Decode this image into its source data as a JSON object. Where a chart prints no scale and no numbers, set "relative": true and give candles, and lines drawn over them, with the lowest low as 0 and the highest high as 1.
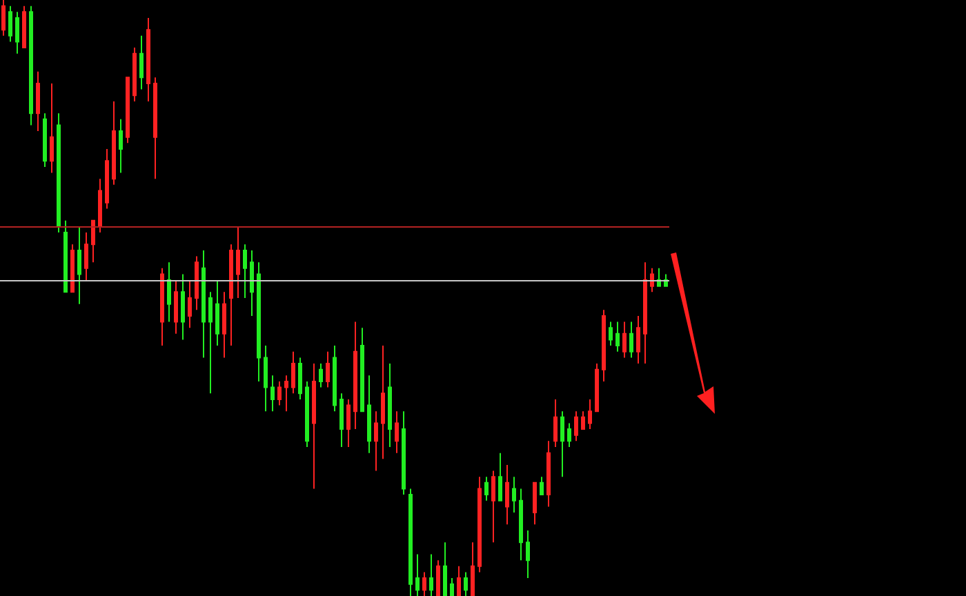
{
  "chart_data": {
    "type": "candlestick",
    "relative": true,
    "colors": [
      "#ff2222",
      "#22ee22",
      "#22ee22",
      "#ff2222",
      "#22ee22",
      "#ff2222",
      "#22ee22",
      "#ff2222",
      "#22ee22",
      "#22ee22",
      "#ff2222",
      "#22ee22",
      "#ff2222",
      "#ff2222",
      "#ff2222",
      "#ff2222",
      "#ff2222",
      "#22ee22",
      "#ff2222",
      "#ff2222",
      "#22ee22",
      "#ff2222",
      "#ff2222",
      "#ff2222",
      "#22ee22",
      "#ff2222",
      "#22ee22",
      "#ff2222",
      "#ff2222",
      "#22ee22",
      "#22ee22",
      "#22ee22",
      "#ff2222",
      "#ff2222",
      "#ff2222",
      "#22ee22",
      "#22ee22",
      "#22ee22",
      "#22ee22",
      "#22ee22",
      "#ff2222",
      "#ff2222",
      "#ff2222",
      "#22ee22",
      "#22ee22",
      "#ff2222",
      "#22ee22",
      "#ff2222",
      "#22ee22",
      "#22ee22",
      "#ff2222",
      "#ff2222",
      "#22ee22",
      "#22ee22",
      "#ff2222",
      "#ff2222",
      "#22ee22",
      "#ff2222",
      "#22ee22",
      "#22ee22",
      "#22ee22",
      "#ff2222",
      "#22ee22",
      "#ff2222",
      "#22ee22",
      "#22ee22",
      "#ff2222",
      "#22ee22",
      "#ff2222",
      "#ff2222",
      "#22ee22",
      "#ff2222",
      "#22ee22",
      "#ff2222",
      "#22ee22",
      "#22ee22",
      "#22ee22",
      "#ff2222",
      "#22ee22",
      "#ff2222",
      "#ff2222",
      "#22ee22",
      "#22ee22",
      "#ff2222",
      "#ff2222",
      "#ff2222",
      "#ff2222",
      "#ff2222",
      "#22ee22",
      "#22ee22",
      "#ff2222",
      "#22ee22",
      "#ff2222",
      "#ff2222",
      "#ff2222",
      "#22ee22",
      "#22ee22"
    ],
    "categories": [
      null,
      null,
      null,
      null,
      null,
      null,
      null,
      null,
      null,
      null,
      null,
      null,
      null,
      null,
      null,
      null,
      null,
      null,
      null,
      null,
      null,
      null,
      null,
      null,
      null,
      null,
      null,
      null,
      null,
      null,
      null,
      null,
      null,
      null,
      null,
      null,
      null,
      null,
      null,
      null,
      null,
      null,
      null,
      null,
      null,
      null,
      null,
      null,
      null,
      null,
      null,
      null,
      null,
      null,
      null,
      null,
      null,
      null,
      null,
      null,
      null,
      null,
      null,
      null,
      null,
      null,
      null,
      null,
      null,
      null,
      null,
      null,
      null,
      null,
      null,
      null,
      null,
      null,
      null,
      null,
      null,
      null,
      null,
      null,
      null,
      null,
      null,
      null,
      null,
      null,
      null,
      null,
      null,
      null,
      null,
      null,
      null
    ],
    "ohlc": [
      [
        0.95,
        1,
        0.94,
        0.99
      ],
      [
        0.98,
        0.99,
        0.93,
        0.94
      ],
      [
        0.97,
        0.98,
        0.91,
        0.93
      ],
      [
        0.92,
        0.99,
        0.92,
        0.98
      ],
      [
        0.98,
        0.99,
        0.79,
        0.81
      ],
      [
        0.81,
        0.88,
        0.78,
        0.86
      ],
      [
        0.8,
        0.81,
        0.72,
        0.73
      ],
      [
        0.73,
        0.86,
        0.71,
        0.77
      ],
      [
        0.79,
        0.81,
        0.61,
        0.62
      ],
      [
        0.61,
        0.63,
        0.51,
        0.51
      ],
      [
        0.51,
        0.59,
        0.51,
        0.58
      ],
      [
        0.58,
        0.62,
        0.49,
        0.54
      ],
      [
        0.55,
        0.61,
        0.53,
        0.59
      ],
      [
        0.59,
        0.63,
        0.56,
        0.63
      ],
      [
        0.62,
        0.7,
        0.61,
        0.68
      ],
      [
        0.66,
        0.75,
        0.65,
        0.73
      ],
      [
        0.7,
        0.83,
        0.69,
        0.78
      ],
      [
        0.78,
        0.8,
        0.71,
        0.75
      ],
      [
        0.77,
        0.87,
        0.76,
        0.87
      ],
      [
        0.84,
        0.92,
        0.83,
        0.91
      ],
      [
        0.91,
        0.94,
        0.85,
        0.87
      ],
      [
        0.86,
        0.97,
        0.83,
        0.95
      ],
      [
        0.77,
        0.87,
        0.7,
        0.86
      ],
      [
        0.46,
        0.55,
        0.42,
        0.54
      ],
      [
        0.53,
        0.56,
        0.46,
        0.49
      ],
      [
        0.46,
        0.53,
        0.44,
        0.51
      ],
      [
        0.51,
        0.54,
        0.43,
        0.46
      ],
      [
        0.47,
        0.53,
        0.45,
        0.5
      ],
      [
        0.5,
        0.57,
        0.48,
        0.56
      ],
      [
        0.55,
        0.58,
        0.4,
        0.46
      ],
      [
        0.5,
        0.51,
        0.34,
        0.46
      ],
      [
        0.49,
        0.53,
        0.42,
        0.44
      ],
      [
        0.44,
        0.51,
        0.4,
        0.49
      ],
      [
        0.5,
        0.59,
        0.42,
        0.58
      ],
      [
        0.54,
        0.62,
        0.5,
        0.58
      ],
      [
        0.58,
        0.59,
        0.5,
        0.55
      ],
      [
        0.56,
        0.58,
        0.47,
        0.51
      ],
      [
        0.54,
        0.56,
        0.36,
        0.4
      ],
      [
        0.4,
        0.42,
        0.31,
        0.35
      ],
      [
        0.35,
        0.37,
        0.31,
        0.33
      ],
      [
        0.33,
        0.36,
        0.32,
        0.35
      ],
      [
        0.35,
        0.37,
        0.31,
        0.36
      ],
      [
        0.35,
        0.41,
        0.34,
        0.39
      ],
      [
        0.39,
        0.4,
        0.33,
        0.34
      ],
      [
        0.35,
        0.36,
        0.25,
        0.26
      ],
      [
        0.29,
        0.39,
        0.18,
        0.36
      ],
      [
        0.38,
        0.39,
        0.35,
        0.36
      ],
      [
        0.36,
        0.41,
        0.35,
        0.39
      ],
      [
        0.4,
        0.42,
        0.31,
        0.32
      ],
      [
        0.33,
        0.34,
        0.25,
        0.28
      ],
      [
        0.28,
        0.33,
        0.25,
        0.32
      ],
      [
        0.31,
        0.46,
        0.28,
        0.41
      ],
      [
        0.42,
        0.45,
        0.31,
        0.31
      ],
      [
        0.32,
        0.37,
        0.24,
        0.26
      ],
      [
        0.26,
        0.31,
        0.21,
        0.29
      ],
      [
        0.29,
        0.42,
        0.23,
        0.34
      ],
      [
        0.35,
        0.39,
        0.25,
        0.28
      ],
      [
        0.26,
        0.31,
        0.24,
        0.29
      ],
      [
        0.28,
        0.31,
        0.17,
        0.18
      ],
      [
        0.17,
        0.18,
        0,
        0.02
      ],
      [
        0.03,
        0.07,
        0,
        0.01
      ],
      [
        0.01,
        0.04,
        0,
        0.03
      ],
      [
        0.03,
        0.07,
        0,
        0.01
      ],
      [
        0,
        0.06,
        0,
        0.05
      ],
      [
        0.05,
        0.09,
        0,
        0
      ],
      [
        0.02,
        0.03,
        0,
        0
      ],
      [
        0,
        0.05,
        0,
        0.03
      ],
      [
        0.03,
        0.04,
        0,
        0.01
      ],
      [
        0,
        0.09,
        0,
        0.05
      ],
      [
        0.05,
        0.2,
        0.04,
        0.18
      ],
      [
        0.19,
        0.2,
        0.16,
        0.17
      ],
      [
        0.16,
        0.21,
        0.09,
        0.2
      ],
      [
        0.2,
        0.24,
        0.16,
        0.16
      ],
      [
        0.15,
        0.22,
        0.12,
        0.19
      ],
      [
        0.18,
        0.2,
        0.14,
        0.16
      ],
      [
        0.16,
        0.18,
        0.06,
        0.09
      ],
      [
        0.09,
        0.11,
        0.03,
        0.06
      ],
      [
        0.14,
        0.19,
        0.12,
        0.19
      ],
      [
        0.19,
        0.2,
        0.17,
        0.17
      ],
      [
        0.17,
        0.26,
        0.15,
        0.24
      ],
      [
        0.26,
        0.33,
        0.25,
        0.3
      ],
      [
        0.3,
        0.31,
        0.2,
        0.26
      ],
      [
        0.28,
        0.29,
        0.25,
        0.26
      ],
      [
        0.27,
        0.31,
        0.26,
        0.3
      ],
      [
        0.28,
        0.31,
        0.28,
        0.3
      ],
      [
        0.29,
        0.33,
        0.28,
        0.31
      ],
      [
        0.31,
        0.39,
        0.31,
        0.38
      ],
      [
        0.38,
        0.48,
        0.36,
        0.47
      ],
      [
        0.45,
        0.46,
        0.42,
        0.43
      ],
      [
        0.44,
        0.46,
        0.41,
        0.42
      ],
      [
        0.41,
        0.46,
        0.4,
        0.44
      ],
      [
        0.44,
        0.46,
        0.4,
        0.41
      ],
      [
        0.41,
        0.47,
        0.39,
        0.45
      ],
      [
        0.44,
        0.56,
        0.39,
        0.53
      ],
      [
        0.52,
        0.55,
        0.51,
        0.54
      ],
      [
        0.53,
        0.55,
        0.52,
        0.52
      ],
      [
        0.53,
        0.54,
        0.52,
        0.52
      ]
    ],
    "ref_lines": [
      {
        "axis": "y",
        "value": 0.62,
        "color": "#b22222"
      },
      {
        "axis": "y",
        "value": 0.53,
        "color": "#c8c8c8"
      }
    ]
  }
}
